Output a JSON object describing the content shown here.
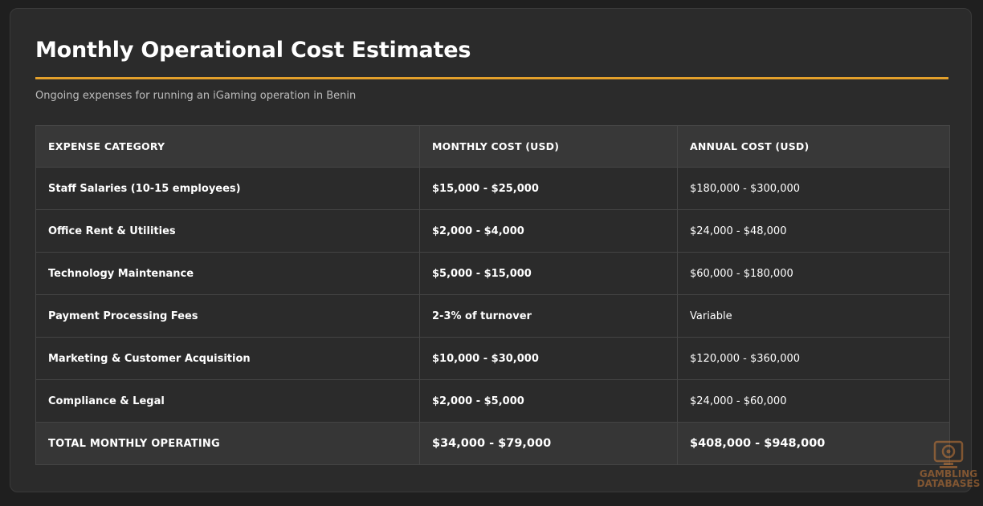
{
  "page": {
    "title": "Monthly Operational Cost Estimates",
    "subtitle": "Ongoing expenses for running an iGaming operation in Benin",
    "accent_color": "#e3a02b"
  },
  "table": {
    "headers": [
      "EXPENSE CATEGORY",
      "MONTHLY COST (USD)",
      "ANNUAL COST (USD)"
    ],
    "rows": [
      {
        "category": "Staff Salaries (10-15 employees)",
        "monthly": "$15,000 - $25,000",
        "annual": "$180,000 - $300,000"
      },
      {
        "category": "Office Rent & Utilities",
        "monthly": "$2,000 - $4,000",
        "annual": "$24,000 - $48,000"
      },
      {
        "category": "Technology Maintenance",
        "monthly": "$5,000 - $15,000",
        "annual": "$60,000 - $180,000"
      },
      {
        "category": "Payment Processing Fees",
        "monthly": "2-3% of turnover",
        "annual": "Variable"
      },
      {
        "category": "Marketing & Customer Acquisition",
        "monthly": "$10,000 - $30,000",
        "annual": "$120,000 - $360,000"
      },
      {
        "category": "Compliance & Legal",
        "monthly": "$2,000 - $5,000",
        "annual": "$24,000 - $60,000"
      }
    ],
    "total": {
      "category": "TOTAL MONTHLY OPERATING",
      "monthly": "$34,000 - $79,000",
      "annual": "$408,000 - $948,000"
    }
  },
  "watermark": {
    "line1": "GAMBLING",
    "line2": "DATABASES",
    "icon": "slot-machine-icon"
  }
}
